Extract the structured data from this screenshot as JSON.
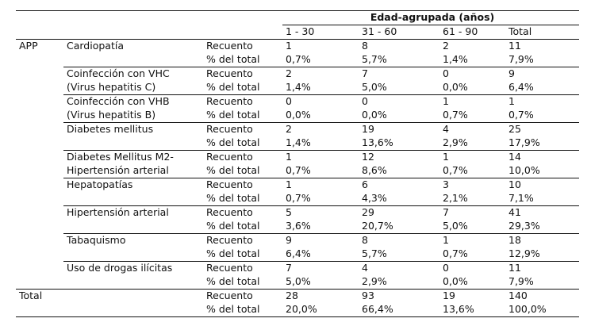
{
  "table": {
    "group_header": "Edad-agrupada (años)",
    "columns": [
      "1 - 30",
      "31 - 60",
      "61 - 90",
      "Total"
    ],
    "row_group_label": "APP",
    "categories": [
      {
        "label_lines": [
          "Cardiopatía"
        ],
        "recuento_label": "Recuento",
        "pct_label": "% del total",
        "recuento": [
          "1",
          "8",
          "2",
          "11"
        ],
        "pct": [
          "0,7%",
          "5,7%",
          "1,4%",
          "7,9%"
        ]
      },
      {
        "label_lines": [
          "Coinfección con VHC",
          "(Virus hepatitis C)"
        ],
        "recuento_label": "Recuento",
        "pct_label": "% del total",
        "recuento": [
          "2",
          "7",
          "0",
          "9"
        ],
        "pct": [
          "1,4%",
          "5,0%",
          "0,0%",
          "6,4%"
        ]
      },
      {
        "label_lines": [
          "Coinfección con VHB",
          "(Virus hepatitis B)"
        ],
        "recuento_label": "Recuento",
        "pct_label": "% del total",
        "recuento": [
          "0",
          "0",
          "1",
          "1"
        ],
        "pct": [
          "0,0%",
          "0,0%",
          "0,7%",
          "0,7%"
        ]
      },
      {
        "label_lines": [
          "Diabetes mellitus"
        ],
        "recuento_label": "Recuento",
        "pct_label": "% del total",
        "recuento": [
          "2",
          "19",
          "4",
          "25"
        ],
        "pct": [
          "1,4%",
          "13,6%",
          "2,9%",
          "17,9%"
        ]
      },
      {
        "label_lines": [
          "Diabetes Mellitus M2-",
          "Hipertensión arterial"
        ],
        "recuento_label": "Recuento",
        "pct_label": "% del total",
        "recuento": [
          "1",
          "12",
          "1",
          "14"
        ],
        "pct": [
          "0,7%",
          "8,6%",
          "0,7%",
          "10,0%"
        ]
      },
      {
        "label_lines": [
          "Hepatopatías"
        ],
        "recuento_label": "Recuento",
        "pct_label": "% del total",
        "recuento": [
          "1",
          "6",
          "3",
          "10"
        ],
        "pct": [
          "0,7%",
          "4,3%",
          "2,1%",
          "7,1%"
        ]
      },
      {
        "label_lines": [
          "Hipertensión arterial"
        ],
        "recuento_label": "Recuento",
        "pct_label": "% del total",
        "recuento": [
          "5",
          "29",
          "7",
          "41"
        ],
        "pct": [
          "3,6%",
          "20,7%",
          "5,0%",
          "29,3%"
        ]
      },
      {
        "label_lines": [
          "Tabaquismo"
        ],
        "recuento_label": "Recuento",
        "pct_label": "% del total",
        "recuento": [
          "9",
          "8",
          "1",
          "18"
        ],
        "pct": [
          "6,4%",
          "5,7%",
          "0,7%",
          "12,9%"
        ]
      },
      {
        "label_lines": [
          "Uso de drogas ilícitas"
        ],
        "recuento_label": "Recuento",
        "pct_label": "% del total",
        "recuento": [
          "7",
          "4",
          "0",
          "11"
        ],
        "pct": [
          "5,0%",
          "2,9%",
          "0,0%",
          "7,9%"
        ]
      }
    ],
    "total_row": {
      "label": "Total",
      "recuento_label": "Recuento",
      "pct_label": "% del total",
      "recuento": [
        "28",
        "93",
        "19",
        "140"
      ],
      "pct": [
        "20,0%",
        "66,4%",
        "13,6%",
        "100,0%"
      ]
    }
  }
}
